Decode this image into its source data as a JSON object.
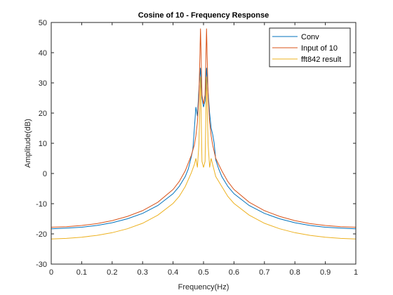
{
  "chart_data": {
    "type": "line",
    "title": "Cosine of 10 - Frequency Response",
    "xlabel": "Frequency(Hz)",
    "ylabel": "Amplitude(dB)",
    "xlim": [
      0,
      1
    ],
    "ylim": [
      -30,
      50
    ],
    "xticks": [
      "0",
      "0.1",
      "0.2",
      "0.3",
      "0.4",
      "0.5",
      "0.6",
      "0.7",
      "0.8",
      "0.9",
      "1"
    ],
    "yticks": [
      "-30",
      "-20",
      "-10",
      "0",
      "10",
      "20",
      "30",
      "40",
      "50"
    ],
    "grid": false,
    "legend": "top-right",
    "series": [
      {
        "name": "Conv",
        "color": "#0072BD",
        "x": [
          0,
          0.05,
          0.1,
          0.15,
          0.2,
          0.25,
          0.3,
          0.35,
          0.4,
          0.42,
          0.44,
          0.45,
          0.46,
          0.465,
          0.47,
          0.475,
          0.48,
          0.485,
          0.49,
          0.495,
          0.5,
          0.505,
          0.51,
          0.515,
          0.52,
          0.525,
          0.53,
          0.535,
          0.54,
          0.55,
          0.56,
          0.58,
          0.6,
          0.65,
          0.7,
          0.75,
          0.8,
          0.85,
          0.9,
          0.95,
          1
        ],
        "y": [
          -18.3,
          -18.1,
          -17.8,
          -17.2,
          -16.3,
          -15.0,
          -13.2,
          -10.6,
          -6.7,
          -4.3,
          -1.0,
          1.5,
          5.5,
          8.0,
          15.0,
          22.0,
          19.0,
          28.0,
          35.0,
          25.0,
          22.0,
          24.0,
          35.0,
          27.0,
          20.0,
          15.0,
          13.0,
          10.0,
          4.5,
          1.5,
          -1.0,
          -4.3,
          -6.7,
          -10.6,
          -13.2,
          -15.0,
          -16.3,
          -17.2,
          -17.8,
          -18.1,
          -18.3
        ]
      },
      {
        "name": "Input of 10",
        "color": "#D95319",
        "x": [
          0,
          0.05,
          0.1,
          0.15,
          0.2,
          0.25,
          0.3,
          0.35,
          0.4,
          0.42,
          0.44,
          0.46,
          0.47,
          0.475,
          0.48,
          0.485,
          0.49,
          0.495,
          0.5,
          0.505,
          0.51,
          0.515,
          0.52,
          0.525,
          0.53,
          0.54,
          0.56,
          0.58,
          0.6,
          0.65,
          0.7,
          0.75,
          0.8,
          0.85,
          0.9,
          0.95,
          1
        ],
        "y": [
          -17.8,
          -17.6,
          -17.2,
          -16.6,
          -15.6,
          -14.2,
          -12.3,
          -9.5,
          -5.3,
          -2.7,
          0.9,
          6.0,
          9.5,
          12.5,
          17.0,
          26.0,
          48.0,
          26.0,
          23.0,
          26.0,
          48.0,
          26.0,
          17.0,
          12.5,
          9.5,
          5.0,
          0.9,
          -2.7,
          -5.3,
          -9.5,
          -12.3,
          -14.2,
          -15.6,
          -16.6,
          -17.2,
          -17.6,
          -17.8
        ]
      },
      {
        "name": "fft842 result",
        "color": "#EDB120",
        "x": [
          0,
          0.05,
          0.1,
          0.15,
          0.2,
          0.25,
          0.3,
          0.35,
          0.4,
          0.42,
          0.44,
          0.46,
          0.47,
          0.475,
          0.48,
          0.485,
          0.49,
          0.495,
          0.5,
          0.505,
          0.51,
          0.515,
          0.52,
          0.525,
          0.53,
          0.54,
          0.56,
          0.58,
          0.6,
          0.65,
          0.7,
          0.75,
          0.8,
          0.85,
          0.9,
          0.95,
          1
        ],
        "y": [
          -21.7,
          -21.5,
          -21.1,
          -20.5,
          -19.6,
          -18.3,
          -16.5,
          -13.8,
          -9.9,
          -7.6,
          -4.3,
          0.2,
          3.0,
          5.0,
          2.0,
          10.0,
          32.0,
          4.0,
          2.0,
          4.0,
          32.0,
          10.0,
          2.0,
          5.0,
          3.0,
          -1.0,
          -4.3,
          -7.6,
          -9.9,
          -13.8,
          -16.5,
          -18.3,
          -19.6,
          -20.5,
          -21.1,
          -21.5,
          -21.7
        ]
      }
    ]
  }
}
